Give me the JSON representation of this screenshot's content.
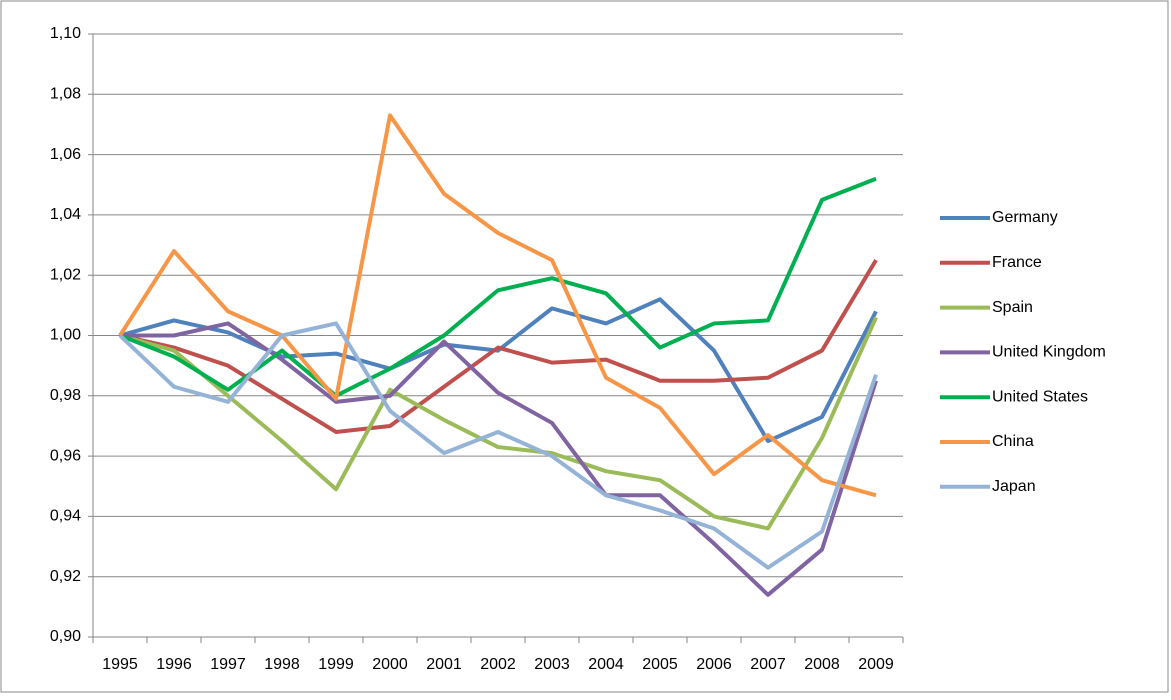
{
  "chart_data": {
    "type": "line",
    "categories": [
      "1995",
      "1996",
      "1997",
      "1998",
      "1999",
      "2000",
      "2001",
      "2002",
      "2003",
      "2004",
      "2005",
      "2006",
      "2007",
      "2008",
      "2009"
    ],
    "series": [
      {
        "name": "Germany",
        "color": "#4f81bd",
        "values": [
          1.0,
          1.005,
          1.001,
          0.993,
          0.994,
          0.989,
          0.997,
          0.995,
          1.009,
          1.004,
          1.012,
          0.995,
          0.965,
          0.973,
          1.008
        ]
      },
      {
        "name": "France",
        "color": "#c0504d",
        "values": [
          1.0,
          0.996,
          0.99,
          0.979,
          0.968,
          0.97,
          0.983,
          0.996,
          0.991,
          0.992,
          0.985,
          0.985,
          0.986,
          0.995,
          1.025
        ]
      },
      {
        "name": "Spain",
        "color": "#9bbb59",
        "values": [
          1.0,
          0.995,
          0.98,
          0.965,
          0.949,
          0.982,
          0.972,
          0.963,
          0.961,
          0.955,
          0.952,
          0.94,
          0.936,
          0.966,
          1.006
        ]
      },
      {
        "name": "United Kingdom",
        "color": "#8064a2",
        "values": [
          1.0,
          1.0,
          1.004,
          0.992,
          0.978,
          0.98,
          0.998,
          0.981,
          0.971,
          0.947,
          0.947,
          0.931,
          0.914,
          0.929,
          0.985
        ]
      },
      {
        "name": "United States",
        "color": "#00b050",
        "values": [
          1.0,
          0.993,
          0.982,
          0.995,
          0.98,
          0.989,
          1.0,
          1.015,
          1.019,
          1.014,
          0.996,
          1.004,
          1.005,
          1.045,
          1.052
        ]
      },
      {
        "name": "China",
        "color": "#f79646",
        "values": [
          1.0,
          1.028,
          1.008,
          1.0,
          0.979,
          1.073,
          1.047,
          1.034,
          1.025,
          0.986,
          0.976,
          0.954,
          0.967,
          0.952,
          0.947
        ]
      },
      {
        "name": "Japan",
        "color": "#95b3d7",
        "values": [
          1.0,
          0.983,
          0.978,
          1.0,
          1.004,
          0.975,
          0.961,
          0.968,
          0.96,
          0.947,
          0.942,
          0.936,
          0.923,
          0.935,
          0.987
        ]
      }
    ],
    "ylim": [
      0.9,
      1.1
    ],
    "yticks": [
      {
        "value": 0.9,
        "label": "0,90"
      },
      {
        "value": 0.92,
        "label": "0,92"
      },
      {
        "value": 0.94,
        "label": "0,94"
      },
      {
        "value": 0.96,
        "label": "0,96"
      },
      {
        "value": 0.98,
        "label": "0,98"
      },
      {
        "value": 1.0,
        "label": "1,00"
      },
      {
        "value": 1.02,
        "label": "1,02"
      },
      {
        "value": 1.04,
        "label": "1,04"
      },
      {
        "value": 1.06,
        "label": "1,06"
      },
      {
        "value": 1.08,
        "label": "1,08"
      },
      {
        "value": 1.1,
        "label": "1,10"
      }
    ],
    "grid": true,
    "legend": "right"
  }
}
